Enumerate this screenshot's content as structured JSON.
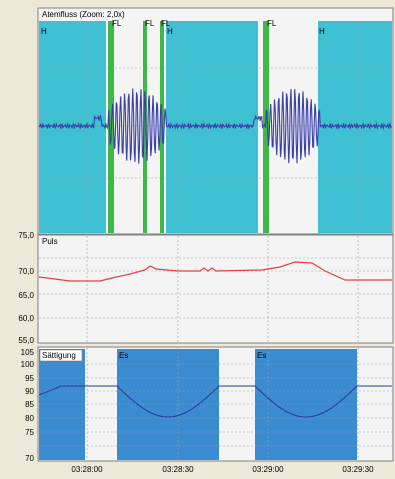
{
  "panels": {
    "flow": {
      "title": "Atemfluss (Zoom: 2,0x)",
      "markers": [
        {
          "label": "H"
        },
        {
          "label": "FL"
        },
        {
          "label": "FL"
        },
        {
          "label": "FL"
        },
        {
          "label": "H"
        },
        {
          "label": "FL"
        },
        {
          "label": "H"
        }
      ]
    },
    "pulse": {
      "title": "Puls",
      "y_ticks": [
        "75,0",
        "70,0",
        "65,0",
        "60,0",
        "55,0"
      ]
    },
    "spo2": {
      "title": "Sättigung",
      "y_ticks": [
        "105",
        "100",
        "95",
        "90",
        "85",
        "80",
        "75",
        "70"
      ],
      "event_labels": [
        "Es",
        "Es"
      ]
    }
  },
  "time_axis": {
    "ticks": [
      "03:28:00",
      "03:28:30",
      "03:29:00",
      "03:29:30"
    ]
  },
  "colors": {
    "flow_shade": "#3fc0d3",
    "flow_line": "#3b3fa8",
    "flow_marker": "#3fb84a",
    "pulse_line": "#e04040",
    "spo2_shade": "#3a8bd0",
    "spo2_line": "#2a3e9c",
    "panel_bg": "#f4f4f4",
    "frame_bg": "#ece9d8"
  }
}
